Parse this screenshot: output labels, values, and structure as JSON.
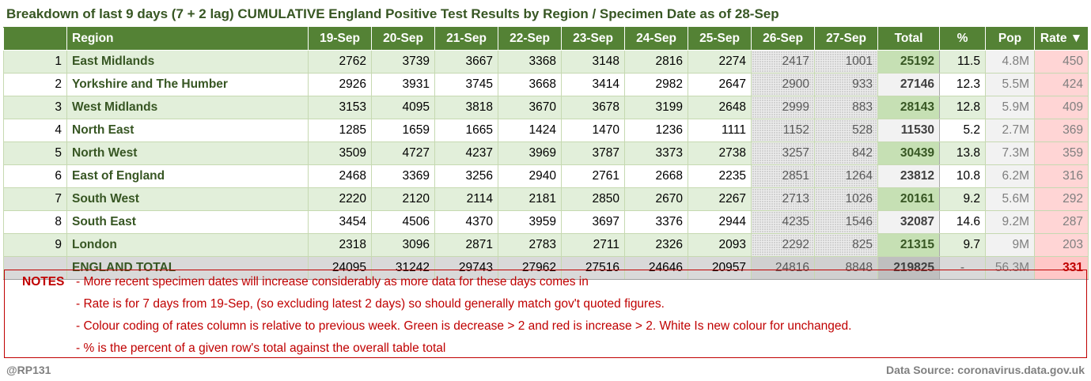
{
  "title": "Breakdown of last 9 days (7 + 2 lag) CUMULATIVE England Positive Test Results by Region / Specimen Date as of 28-Sep",
  "headers": {
    "index": "",
    "region": "Region",
    "days": [
      "19-Sep",
      "20-Sep",
      "21-Sep",
      "22-Sep",
      "23-Sep",
      "24-Sep",
      "25-Sep",
      "26-Sep",
      "27-Sep"
    ],
    "total": "Total",
    "pct": "%",
    "pop": "Pop",
    "rate": "Rate ▼"
  },
  "rows": [
    {
      "idx": "1",
      "region": "East Midlands",
      "days": [
        "2762",
        "3739",
        "3667",
        "3368",
        "3148",
        "2816",
        "2274",
        "2417",
        "1001"
      ],
      "total": "25192",
      "pct": "11.5",
      "pop": "4.8M",
      "rate": "450"
    },
    {
      "idx": "2",
      "region": "Yorkshire and The Humber",
      "days": [
        "2926",
        "3931",
        "3745",
        "3668",
        "3414",
        "2982",
        "2647",
        "2900",
        "933"
      ],
      "total": "27146",
      "pct": "12.3",
      "pop": "5.5M",
      "rate": "424"
    },
    {
      "idx": "3",
      "region": "West Midlands",
      "days": [
        "3153",
        "4095",
        "3818",
        "3670",
        "3678",
        "3199",
        "2648",
        "2999",
        "883"
      ],
      "total": "28143",
      "pct": "12.8",
      "pop": "5.9M",
      "rate": "409"
    },
    {
      "idx": "4",
      "region": "North East",
      "days": [
        "1285",
        "1659",
        "1665",
        "1424",
        "1470",
        "1236",
        "1111",
        "1152",
        "528"
      ],
      "total": "11530",
      "pct": "5.2",
      "pop": "2.7M",
      "rate": "369"
    },
    {
      "idx": "5",
      "region": "North West",
      "days": [
        "3509",
        "4727",
        "4237",
        "3969",
        "3787",
        "3373",
        "2738",
        "3257",
        "842"
      ],
      "total": "30439",
      "pct": "13.8",
      "pop": "7.3M",
      "rate": "359"
    },
    {
      "idx": "6",
      "region": "East of England",
      "days": [
        "2468",
        "3369",
        "3256",
        "2940",
        "2761",
        "2668",
        "2235",
        "2851",
        "1264"
      ],
      "total": "23812",
      "pct": "10.8",
      "pop": "6.2M",
      "rate": "316"
    },
    {
      "idx": "7",
      "region": "South West",
      "days": [
        "2220",
        "2120",
        "2114",
        "2181",
        "2850",
        "2670",
        "2267",
        "2713",
        "1026"
      ],
      "total": "20161",
      "pct": "9.2",
      "pop": "5.6M",
      "rate": "292"
    },
    {
      "idx": "8",
      "region": "South East",
      "days": [
        "3454",
        "4506",
        "4370",
        "3959",
        "3697",
        "3376",
        "2944",
        "4235",
        "1546"
      ],
      "total": "32087",
      "pct": "14.6",
      "pop": "9.2M",
      "rate": "287"
    },
    {
      "idx": "9",
      "region": "London",
      "days": [
        "2318",
        "3096",
        "2871",
        "2783",
        "2711",
        "2326",
        "2093",
        "2292",
        "825"
      ],
      "total": "21315",
      "pct": "9.7",
      "pop": "9M",
      "rate": "203"
    }
  ],
  "total_row": {
    "idx": "",
    "region": "ENGLAND TOTAL",
    "days": [
      "24095",
      "31242",
      "29743",
      "27962",
      "27516",
      "24646",
      "20957",
      "24816",
      "8848"
    ],
    "total": "219825",
    "pct": "-",
    "pop": "56.3M",
    "rate": "331"
  },
  "notes": {
    "label": "NOTES",
    "lines": [
      "- More recent specimen dates will increase considerably as more data for these days comes in",
      "- Rate is for 7 days from 19-Sep, (so excluding latest 2 days) so should generally match gov't quoted figures.",
      "- Colour coding of rates column is relative to previous week. Green is decrease > 2 and red is increase > 2. White Is new colour for unchanged.",
      "- % is the percent of a given row's total against the overall table total"
    ]
  },
  "footer": {
    "author": "@RP131",
    "source": "Data Source: coronavirus.data.gov.uk"
  },
  "colors": {
    "header_bg": "#548235",
    "row_alt_bg": "#e2efda",
    "total_bold_bg": "#c6e0b4",
    "rate_bg": "#ffd5d5",
    "notes_red": "#c00000",
    "title_green": "#375623"
  }
}
